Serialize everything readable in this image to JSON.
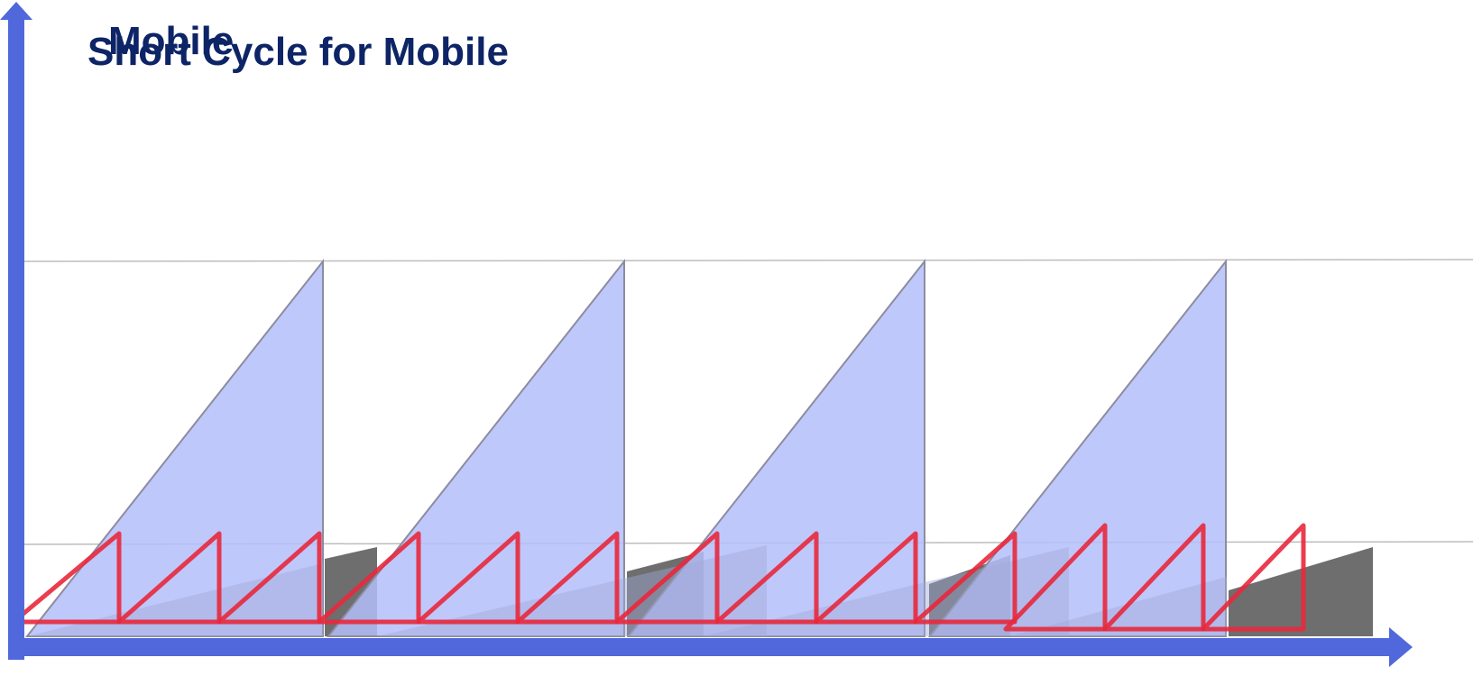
{
  "title": "Short Cycle for Mobile",
  "overlay_title": "Mobile"
}
